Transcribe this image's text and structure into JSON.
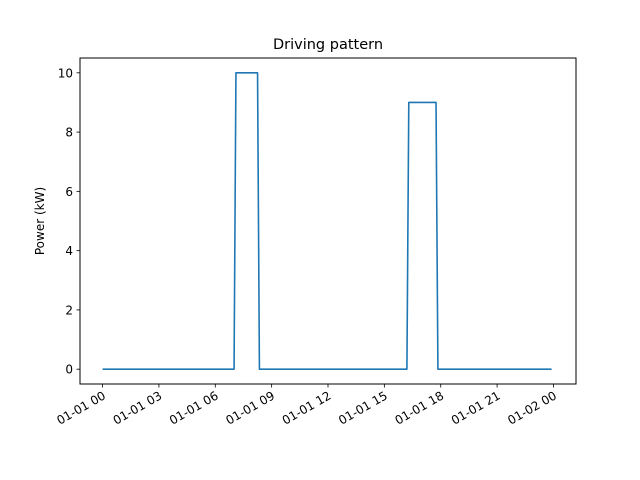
{
  "chart_data": {
    "type": "line",
    "title": "Driving pattern",
    "xlabel": "",
    "ylabel": "Power (kW)",
    "x_tick_labels": [
      "01-01 00",
      "01-01 03",
      "01-01 06",
      "01-01 09",
      "01-01 12",
      "01-01 15",
      "01-01 18",
      "01-01 21",
      "01-02 00"
    ],
    "x_tick_hours": [
      0,
      3,
      6,
      9,
      12,
      15,
      18,
      21,
      24
    ],
    "y_ticks": [
      0,
      2,
      4,
      6,
      8,
      10
    ],
    "xlim_hours": [
      -1.2,
      25.2
    ],
    "ylim": [
      -0.5,
      10.5
    ],
    "grid": false,
    "line_color": "#1f77b4",
    "series": [
      {
        "x_hours": [
          0,
          7.0,
          7.1,
          8.25,
          8.35,
          16.2,
          16.3,
          17.75,
          17.85,
          23.9
        ],
        "values": [
          0,
          0,
          10,
          10,
          0,
          0,
          9,
          9,
          0,
          0
        ]
      }
    ]
  }
}
